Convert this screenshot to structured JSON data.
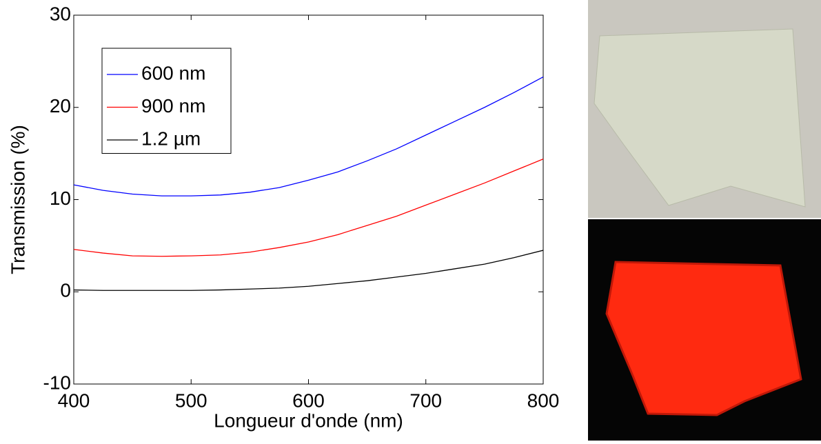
{
  "chart_data": {
    "type": "line",
    "x_label": "Longueur d'onde (nm)",
    "y_label": "Transmission (%)",
    "x": [
      400,
      425,
      450,
      475,
      500,
      525,
      550,
      575,
      600,
      625,
      650,
      675,
      700,
      725,
      750,
      775,
      800
    ],
    "series": [
      {
        "name": "600 nm",
        "color": "#0000ff",
        "values": [
          11.6,
          11.0,
          10.6,
          10.4,
          10.4,
          10.5,
          10.8,
          11.3,
          12.1,
          13.0,
          14.2,
          15.5,
          17.0,
          18.5,
          20.0,
          21.6,
          23.3
        ]
      },
      {
        "name": "900 nm",
        "color": "#ff0000",
        "values": [
          4.6,
          4.2,
          3.9,
          3.85,
          3.9,
          4.0,
          4.3,
          4.8,
          5.4,
          6.2,
          7.2,
          8.2,
          9.4,
          10.6,
          11.8,
          13.1,
          14.4
        ]
      },
      {
        "name": "1.2 µm",
        "color": "#000000",
        "values": [
          0.2,
          0.15,
          0.15,
          0.15,
          0.15,
          0.2,
          0.3,
          0.4,
          0.6,
          0.9,
          1.2,
          1.6,
          2.0,
          2.5,
          3.0,
          3.7,
          4.5
        ]
      }
    ],
    "xlim": [
      400,
      800
    ],
    "xticks": [
      400,
      500,
      600,
      700,
      800
    ],
    "ylim": [
      -10,
      30
    ],
    "yticks": [
      -10,
      0,
      10,
      20,
      30
    ],
    "legend": "upper-left",
    "grid": false
  }
}
